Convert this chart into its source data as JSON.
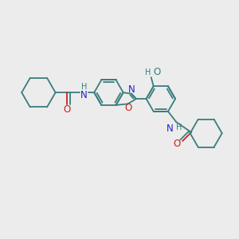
{
  "bg_color": "#ececec",
  "bond_color": "#3a7d7d",
  "N_color": "#2020cc",
  "O_color": "#cc2020",
  "lw": 1.3,
  "figsize": [
    3.0,
    3.0
  ],
  "dpi": 100,
  "xlim": [
    0,
    10
  ],
  "ylim": [
    0,
    10
  ]
}
